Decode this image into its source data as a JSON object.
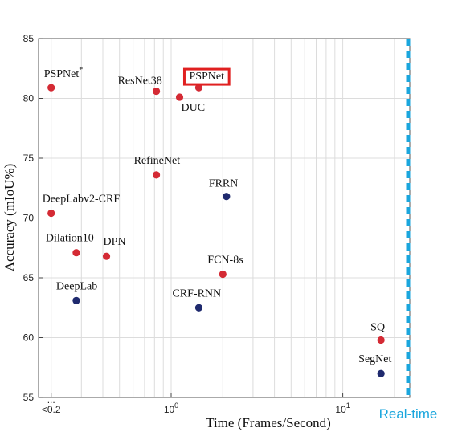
{
  "chart_data": {
    "type": "scatter",
    "title": "",
    "xlabel": "Time (Frames/Second)",
    "ylabel": "Accuracy (mIoU%)",
    "x_scale": "log",
    "x_ticks": [
      {
        "value": 0.2,
        "label": "<0.2"
      },
      {
        "value": 1,
        "label": "10",
        "sup": "0"
      },
      {
        "value": 10,
        "label": "10",
        "sup": "1"
      }
    ],
    "x_overflow_label": "...",
    "y_ticks": [
      "55",
      "60",
      "65",
      "70",
      "75",
      "80",
      "85"
    ],
    "ylim": [
      55,
      85
    ],
    "grid": true,
    "realtime": {
      "label": "Real-time",
      "color": "#1aa6dd"
    },
    "colors": {
      "red": "#d42a34",
      "blue": "#1f2a6e",
      "highlight": "#e02020"
    },
    "points": [
      {
        "label": "PSPNet",
        "sup": "*",
        "x": 0.2,
        "y": 80.9,
        "color": "red"
      },
      {
        "label": "ResNet38",
        "sup": "",
        "x": 0.82,
        "y": 80.6,
        "color": "red"
      },
      {
        "label": "PSPNet",
        "sup": "",
        "x": 1.45,
        "y": 80.9,
        "color": "red",
        "highlighted": true
      },
      {
        "label": "DUC",
        "sup": "",
        "x": 1.12,
        "y": 80.1,
        "color": "red"
      },
      {
        "label": "RefineNet",
        "sup": "",
        "x": 0.82,
        "y": 73.6,
        "color": "red"
      },
      {
        "label": "FRRN",
        "sup": "",
        "x": 2.1,
        "y": 71.8,
        "color": "blue"
      },
      {
        "label": "DeepLabv2-CRF",
        "sup": "",
        "x": 0.2,
        "y": 70.4,
        "color": "red"
      },
      {
        "label": "Dilation10",
        "sup": "",
        "x": 0.28,
        "y": 67.1,
        "color": "red"
      },
      {
        "label": "DPN",
        "sup": "",
        "x": 0.42,
        "y": 66.8,
        "color": "red"
      },
      {
        "label": "FCN-8s",
        "sup": "",
        "x": 2.0,
        "y": 65.3,
        "color": "red"
      },
      {
        "label": "DeepLab",
        "sup": "",
        "x": 0.28,
        "y": 63.1,
        "color": "blue"
      },
      {
        "label": "CRF-RNN",
        "sup": "",
        "x": 1.45,
        "y": 62.5,
        "color": "blue"
      },
      {
        "label": "SQ",
        "sup": "",
        "x": 16.7,
        "y": 59.8,
        "color": "red"
      },
      {
        "label": "SegNet",
        "sup": "",
        "x": 16.7,
        "y": 57.0,
        "color": "blue"
      }
    ]
  }
}
